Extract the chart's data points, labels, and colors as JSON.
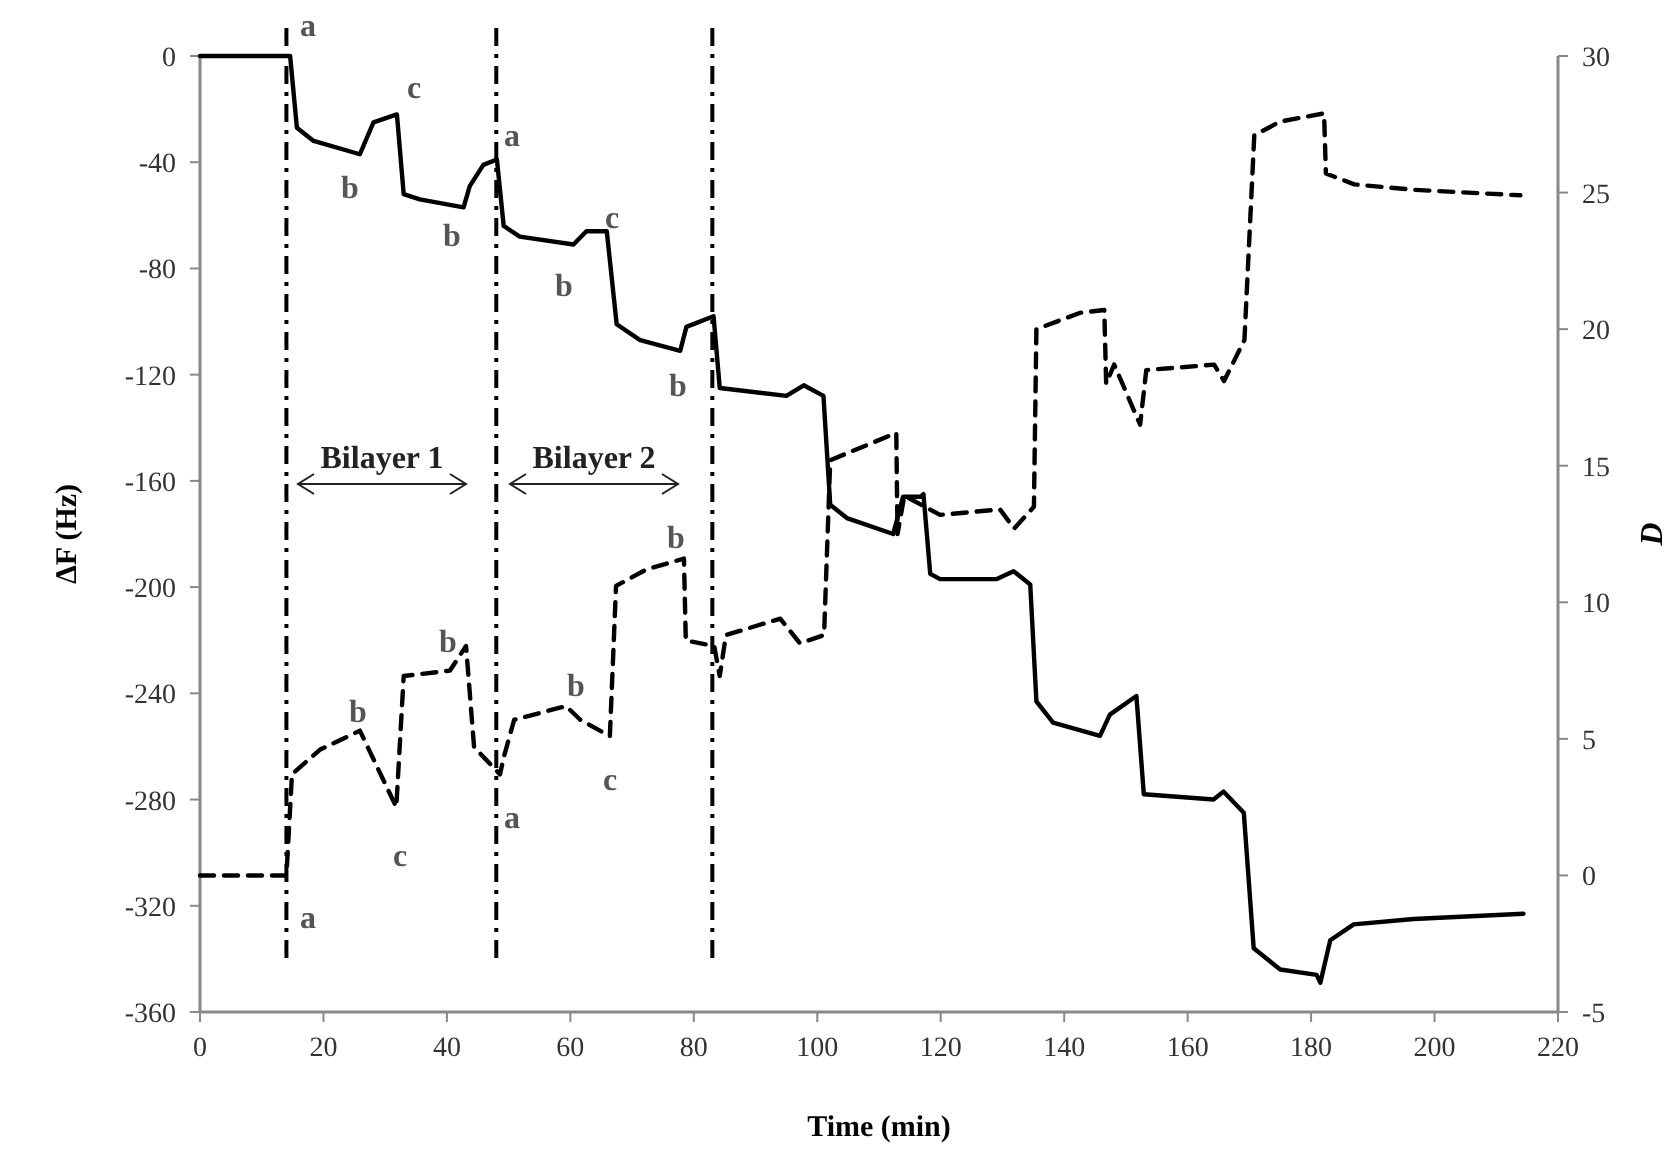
{
  "chart_data": {
    "type": "line",
    "xlabel": "Time (min)",
    "ylabel": "ΔF (Hz)",
    "y2label": "D",
    "xlim": [
      0,
      220
    ],
    "xticks": [
      0,
      20,
      40,
      60,
      80,
      100,
      120,
      140,
      160,
      180,
      200,
      220
    ],
    "ylim": [
      -360,
      0
    ],
    "yticks": [
      -360,
      -320,
      -280,
      -240,
      -200,
      -160,
      -120,
      -80,
      -40,
      0
    ],
    "y2lim": [
      -5,
      30
    ],
    "y2ticks": [
      -5,
      0,
      5,
      10,
      15,
      20,
      25,
      30
    ],
    "grid": false,
    "series": [
      {
        "color": "#000000",
        "line_style": "solid",
        "x": [
          0,
          14.6,
          15.7,
          18.4,
          25.9,
          28.1,
          31.9,
          33,
          35.6,
          42.7,
          43.7,
          45.9,
          48.1,
          49.2,
          51.8,
          60.5,
          62.6,
          65.9,
          67.5,
          71.3,
          77.8,
          78.8,
          83.2,
          84.2,
          95,
          97.8,
          101,
          102.1,
          104.8,
          112.3,
          113.9,
          116.7,
          117.2,
          118.3,
          119.9,
          129,
          131.8,
          134.5,
          135.5,
          138.2,
          145.8,
          147.4,
          151.7,
          152.9,
          164.2,
          165.8,
          169.1,
          170.7,
          175,
          180.9,
          181.5,
          183.1,
          186.9,
          196.6,
          214.4
        ],
        "values": [
          0,
          0,
          -27,
          -32,
          -37,
          -25,
          -22,
          -52,
          -54,
          -57,
          -49,
          -41,
          -39,
          -64,
          -68,
          -71,
          -66,
          -66,
          -101,
          -107,
          -111,
          -102,
          -98,
          -125,
          -128,
          -124,
          -128,
          -169,
          -174,
          -180,
          -166,
          -166,
          -165,
          -195,
          -197,
          -197,
          -194,
          -199,
          -243,
          -251,
          -256,
          -248,
          -241,
          -278,
          -280,
          -277,
          -285,
          -336,
          -344,
          -346,
          -349,
          -333,
          -327,
          -325,
          -323
        ]
      },
      {
        "color": "#000000",
        "line_style": "dashed",
        "axis": "y2",
        "x": [
          0,
          14,
          14.9,
          19.4,
          25.9,
          31.8,
          33,
          40.5,
          43.1,
          44.4,
          48.6,
          49.3,
          50.9,
          59.3,
          61.6,
          66.4,
          67.4,
          72.3,
          78.4,
          78.7,
          83.3,
          84.2,
          85.2,
          94,
          97.2,
          101.1,
          102.1,
          112.8,
          113,
          114.1,
          119.9,
          129.6,
          131.9,
          135.1,
          135.5,
          142.6,
          146.5,
          146.8,
          148.1,
          152.3,
          153.3,
          164.3,
          165.9,
          169.2,
          170.8,
          175,
          182.1,
          182.4,
          187,
          196.7,
          213.9
        ],
        "values": [
          0,
          0,
          3.7,
          4.6,
          5.3,
          2.5,
          7.3,
          7.5,
          8.4,
          4.7,
          3.7,
          4.4,
          5.7,
          6.2,
          5.7,
          5.1,
          10.6,
          11.2,
          11.6,
          8.6,
          8.4,
          7.3,
          8.8,
          9.4,
          8.5,
          8.8,
          15.2,
          16.2,
          12.5,
          13.9,
          13.2,
          13.4,
          12.7,
          13.5,
          20,
          20.6,
          20.7,
          18,
          18.7,
          16.5,
          18.5,
          18.7,
          18.1,
          19.6,
          27.1,
          27.6,
          27.9,
          25.7,
          25.3,
          25.1,
          24.9
        ]
      }
    ],
    "ref_lines": [
      {
        "axis": "x",
        "value": 14,
        "line_style": "dashed"
      },
      {
        "axis": "x",
        "value": 48,
        "line_style": "dashed"
      },
      {
        "axis": "x",
        "value": 83,
        "line_style": "dashed"
      }
    ],
    "annotations": [
      "a",
      "b",
      "c",
      "b",
      "a",
      "b",
      "c",
      "b",
      "a",
      "b",
      "c",
      "b",
      "a",
      "b",
      "c",
      "b",
      "Bilayer 1",
      "Bilayer 2"
    ]
  }
}
